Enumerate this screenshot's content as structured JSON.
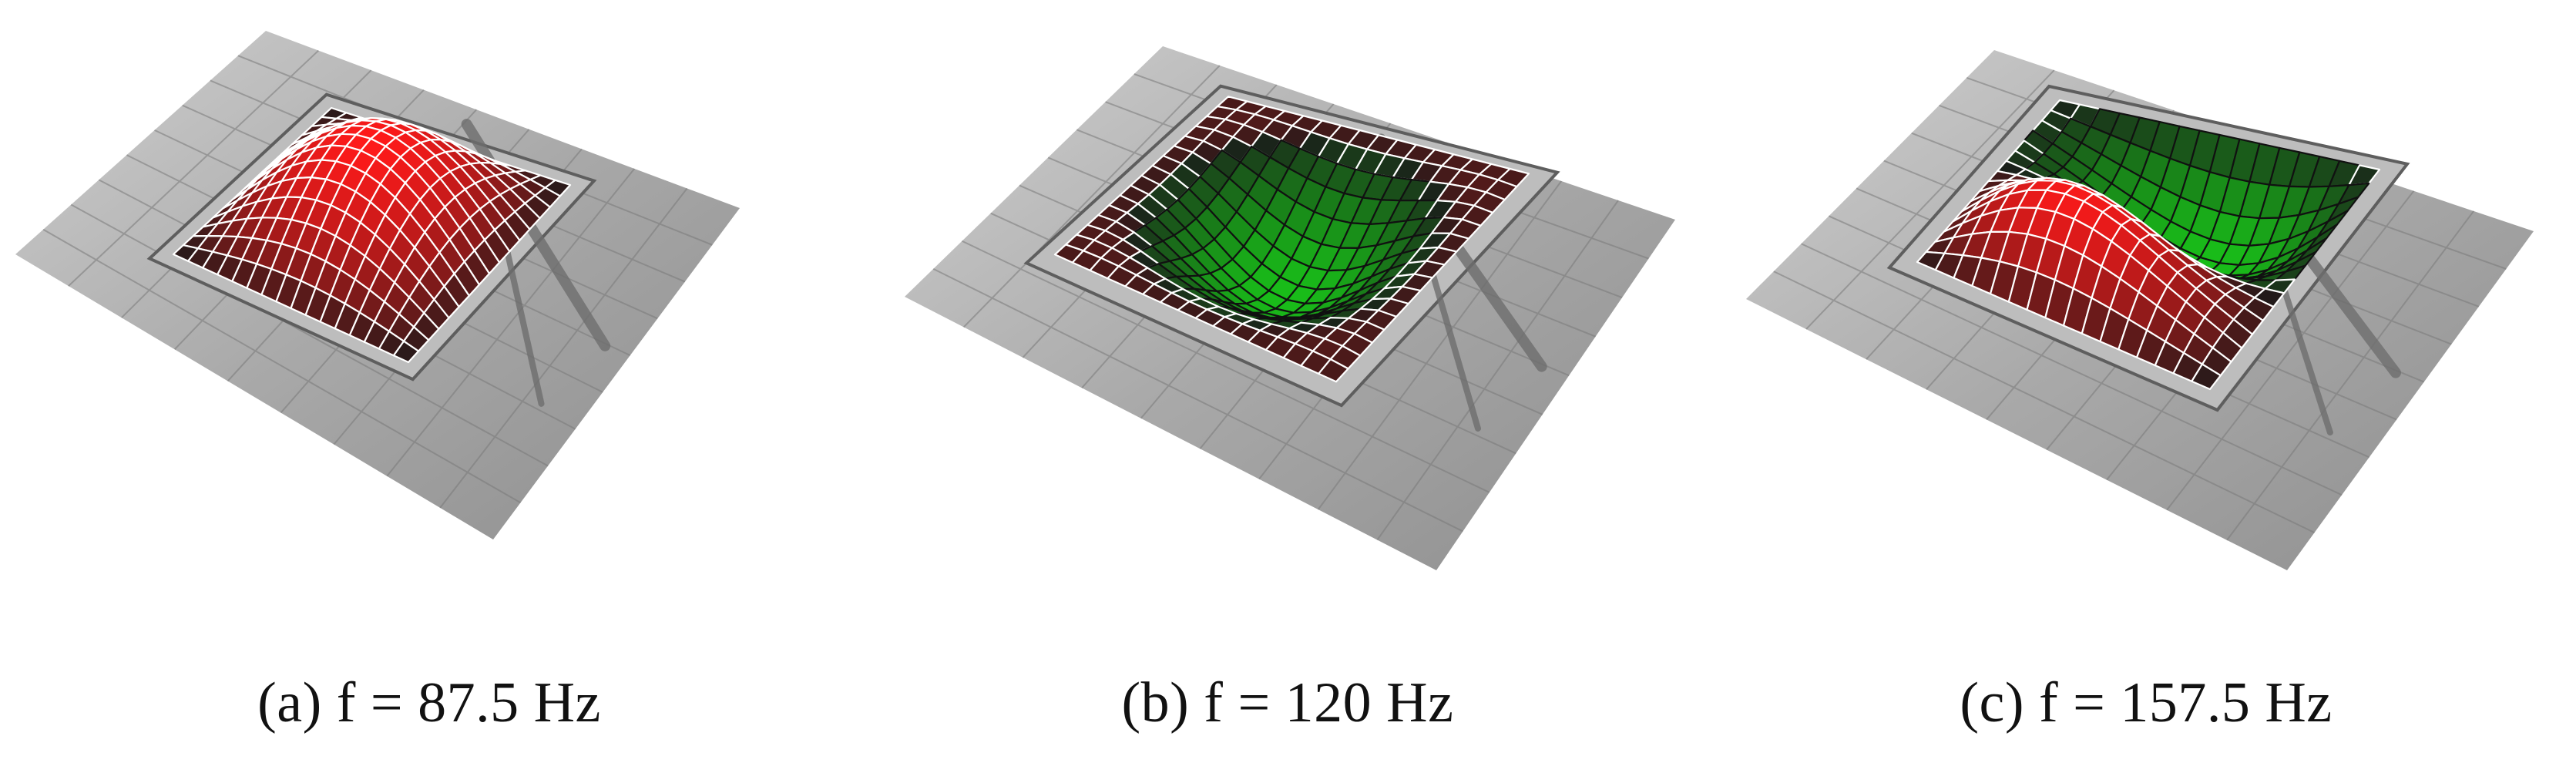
{
  "figure": {
    "panels": [
      {
        "caption": "(a) f = 87.5 Hz",
        "mode": "mode-1"
      },
      {
        "caption": "(b) f = 120 Hz",
        "mode": "mode-2"
      },
      {
        "caption": "(c) f = 157.5 Hz",
        "mode": "mode-3"
      }
    ]
  },
  "colors": {
    "positive_deflection": "#ff1a1a",
    "negative_deflection": "#19c419",
    "mesh_lines_light": "#ffffff",
    "mesh_lines_dark": "#111111",
    "background_photo": "#a9a9a9"
  }
}
